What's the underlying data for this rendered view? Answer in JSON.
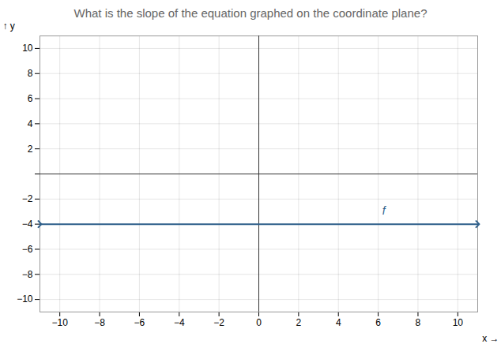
{
  "chart_data": {
    "type": "line",
    "title": "What is the slope of the equation graphed on the coordinate plane?",
    "xlabel": "x",
    "ylabel": "y",
    "x": [
      -11,
      11
    ],
    "values": [
      -4,
      -4
    ],
    "color": "#2e5f8a",
    "xlim": [
      -11,
      11
    ],
    "ylim": [
      -11,
      11
    ],
    "xticks": [
      {
        "value": -10,
        "label": "−10"
      },
      {
        "value": -8,
        "label": "−8"
      },
      {
        "value": -6,
        "label": "−6"
      },
      {
        "value": -4,
        "label": "−4"
      },
      {
        "value": -2,
        "label": "−2"
      },
      0,
      2,
      4,
      6,
      8,
      10
    ],
    "yticks": [
      {
        "value": -10,
        "label": "−10"
      },
      {
        "value": -8,
        "label": "−8"
      },
      {
        "value": -6,
        "label": "−6"
      },
      {
        "value": -4,
        "label": "−4"
      },
      {
        "value": -2,
        "label": "−2"
      },
      {
        "value": 0,
        "label": null
      },
      2,
      4,
      6,
      8,
      10
    ],
    "grid": true,
    "annotations": [
      {
        "text": "f",
        "x": 6.2,
        "y": -3.2
      }
    ]
  }
}
